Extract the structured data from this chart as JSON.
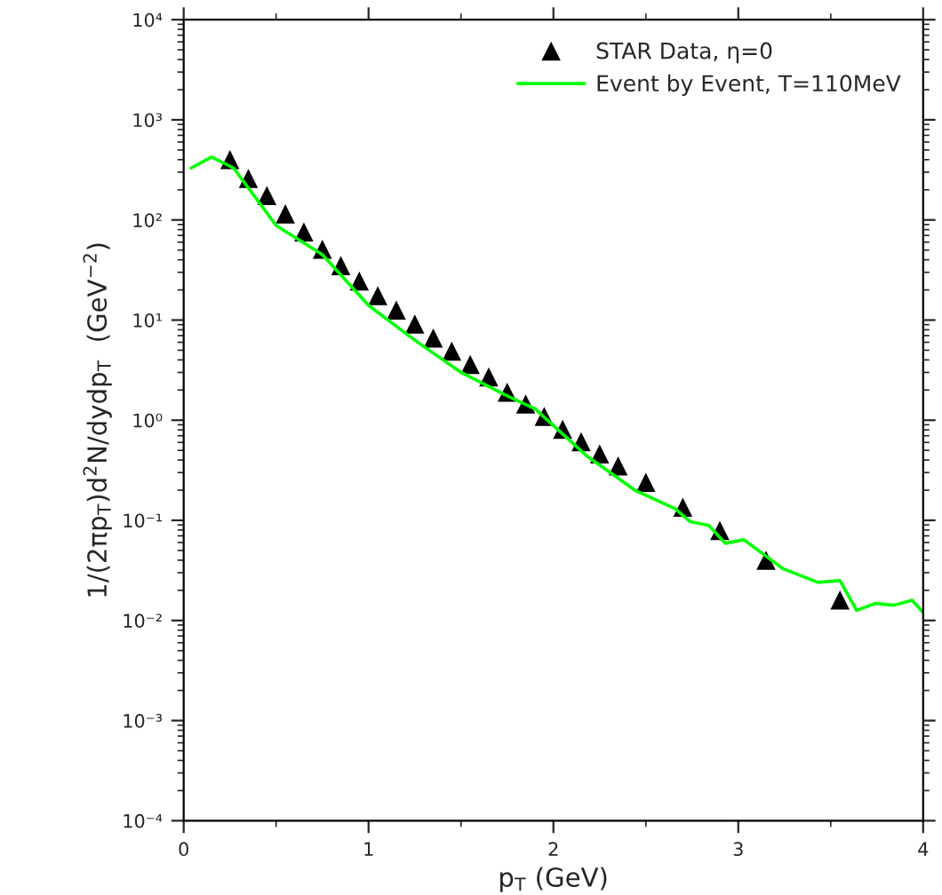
{
  "chart_data": {
    "type": "scatter",
    "xlabel": "p$_{T}$ (GeV)",
    "ylabel": "1/(2πp$_{T}$)d$^{2}$N/dydp$_{T}$  (GeV$^{−2}$)",
    "log": "y",
    "xlim": [
      0,
      4
    ],
    "xticks": [
      0,
      1,
      2,
      3,
      4
    ],
    "ylim": [
      0.0001,
      10000
    ],
    "yticks": [
      {
        "value": 0.0001,
        "label": "10⁻⁴"
      },
      {
        "value": 0.001,
        "label": "10⁻³"
      },
      {
        "value": 0.01,
        "label": "10⁻²"
      },
      {
        "value": 0.1,
        "label": "10⁻¹"
      },
      {
        "value": 1,
        "label": "10⁰"
      },
      {
        "value": 10,
        "label": "10¹"
      },
      {
        "value": 100,
        "label": "10²"
      },
      {
        "value": 1000,
        "label": "10³"
      },
      {
        "value": 10000,
        "label": "10⁴"
      }
    ],
    "legend": "top right",
    "grid": false,
    "series": [
      {
        "name": "STAR Data, η=0",
        "marker": "triangle",
        "color": "#000000",
        "x": [
          0.25,
          0.35,
          0.45,
          0.55,
          0.65,
          0.75,
          0.85,
          0.95,
          1.05,
          1.15,
          1.25,
          1.35,
          1.45,
          1.55,
          1.65,
          1.75,
          1.85,
          1.95,
          2.05,
          2.15,
          2.25,
          2.35,
          2.5,
          2.7,
          2.9,
          3.15,
          3.55
        ],
        "values": [
          400,
          260,
          175,
          115,
          76,
          51,
          35,
          24.5,
          17.5,
          12.6,
          9.1,
          6.6,
          4.9,
          3.6,
          2.7,
          1.9,
          1.45,
          1.09,
          0.81,
          0.61,
          0.46,
          0.35,
          0.24,
          0.135,
          0.079,
          0.04,
          0.016
        ]
      },
      {
        "name": "Event by Event, T=110MeV",
        "type": "line",
        "marker": "none",
        "line_style": "solid",
        "color": "#00ff00",
        "x": [
          0.04,
          0.15,
          0.27,
          0.5,
          0.75,
          1.0,
          1.25,
          1.5,
          1.75,
          1.9,
          2.18,
          2.44,
          2.66,
          2.74,
          2.84,
          2.93,
          3.03,
          3.24,
          3.43,
          3.55,
          3.64,
          3.74,
          3.84,
          3.94,
          4.0
        ],
        "values": [
          330,
          425,
          330,
          88,
          45,
          14,
          6.3,
          3.0,
          1.75,
          1.3,
          0.44,
          0.2,
          0.13,
          0.097,
          0.089,
          0.059,
          0.064,
          0.033,
          0.024,
          0.025,
          0.0126,
          0.0148,
          0.0142,
          0.0159,
          0.012
        ]
      }
    ]
  }
}
